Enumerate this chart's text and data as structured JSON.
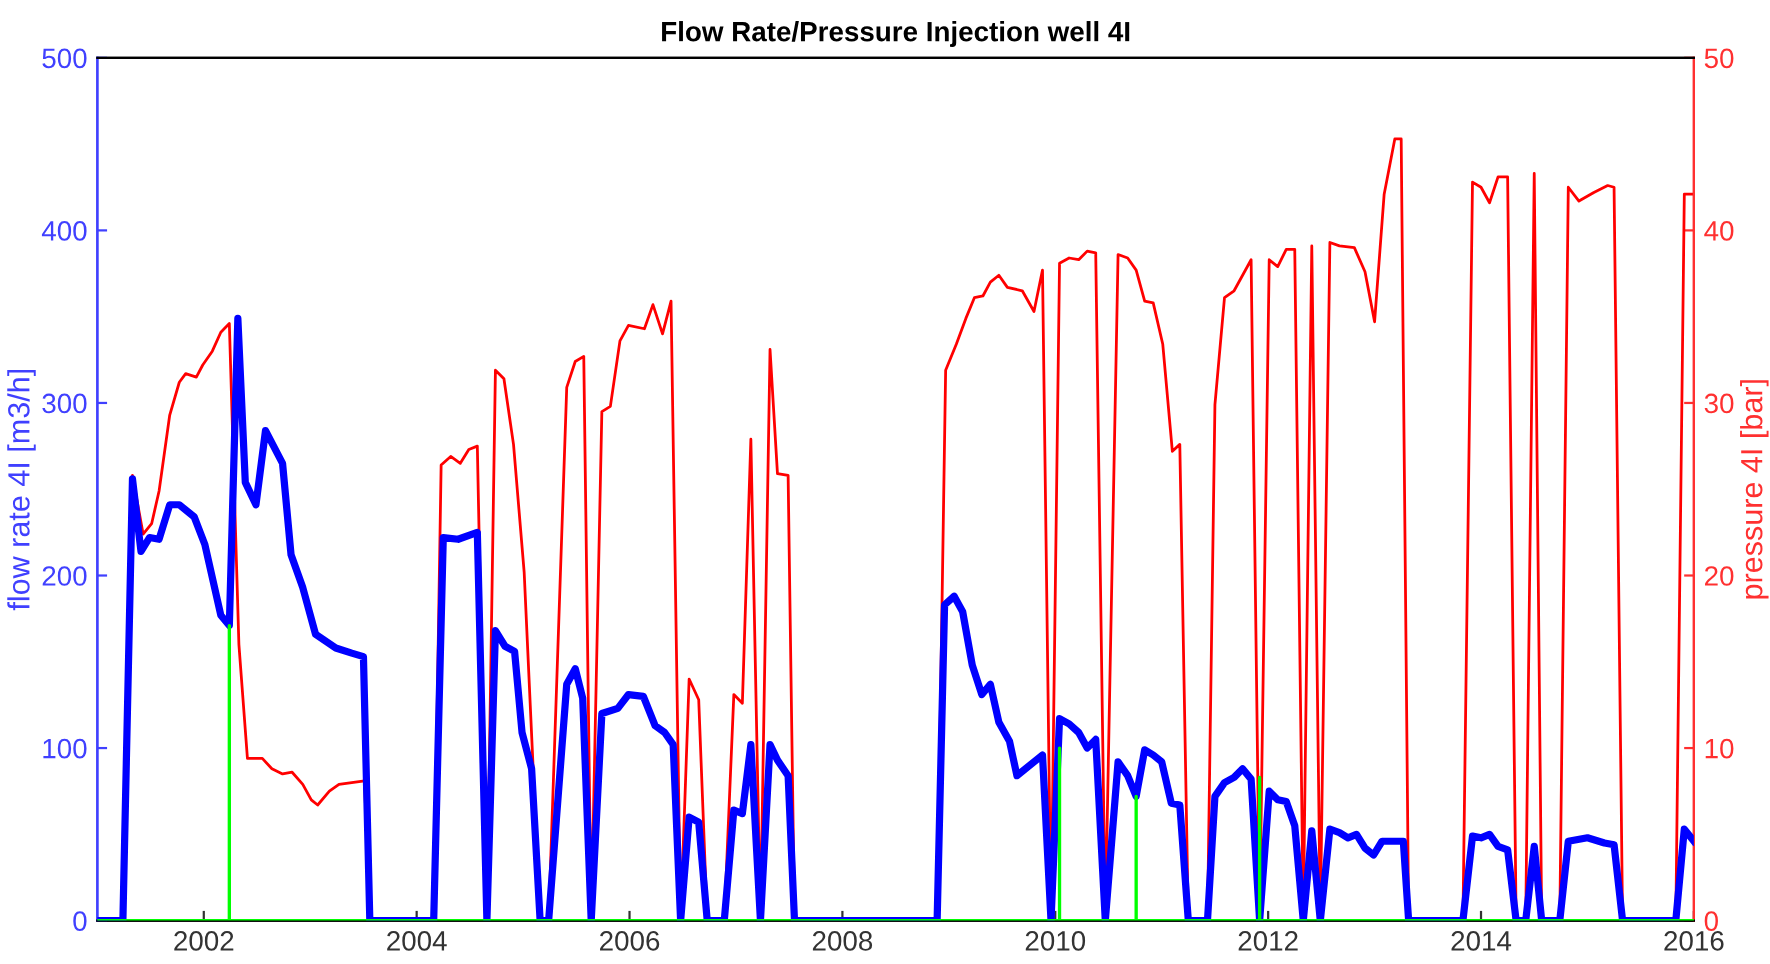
{
  "chart_data": {
    "type": "line",
    "title": "Flow Rate/Pressure Injection well 4I",
    "ylabel": "flow rate 4I [m3/h]",
    "y2label": "pressure 4I [bar]",
    "xlim": [
      2001,
      2016
    ],
    "xticks": [
      2002,
      2004,
      2006,
      2008,
      2010,
      2012,
      2014,
      2016
    ],
    "ylim": [
      0,
      500
    ],
    "yticks": [
      0,
      100,
      200,
      300,
      400,
      500
    ],
    "y2lim": [
      0,
      50
    ],
    "y2ticks": [
      0,
      10,
      20,
      30,
      40,
      50
    ],
    "grid": false,
    "legend": false,
    "series": [
      {
        "color": "#ff0000",
        "axis": "y2",
        "x": [
          2001.0,
          2001.24,
          2001.33,
          2001.43,
          2001.51,
          2001.58,
          2001.68,
          2001.77,
          2001.83,
          2001.93,
          2001.99,
          2002.08,
          2002.16,
          2002.24,
          2002.33,
          2002.41,
          2002.55,
          2002.64,
          2002.74,
          2002.83,
          2002.93,
          2003.01,
          2003.07,
          2003.18,
          2003.27,
          2003.39,
          2003.51,
          2003.56,
          2004.16,
          2004.23,
          2004.32,
          2004.41,
          2004.49,
          2004.57,
          2004.66,
          2004.74,
          2004.82,
          2004.91,
          2005.01,
          2005.16,
          2005.24,
          2005.41,
          2005.49,
          2005.57,
          2005.64,
          2005.74,
          2005.82,
          2005.91,
          2005.99,
          2006.14,
          2006.22,
          2006.31,
          2006.39,
          2006.48,
          2006.56,
          2006.65,
          2006.73,
          2006.89,
          2006.98,
          2007.06,
          2007.14,
          2007.23,
          2007.32,
          2007.39,
          2007.49,
          2007.55,
          2008.89,
          2008.97,
          2009.07,
          2009.16,
          2009.24,
          2009.32,
          2009.39,
          2009.47,
          2009.55,
          2009.69,
          2009.8,
          2009.88,
          2009.96,
          2010.04,
          2010.13,
          2010.22,
          2010.3,
          2010.38,
          2010.47,
          2010.59,
          2010.68,
          2010.76,
          2010.84,
          2010.92,
          2011.01,
          2011.1,
          2011.17,
          2011.25,
          2011.43,
          2011.5,
          2011.59,
          2011.68,
          2011.76,
          2011.84,
          2011.92,
          2012.01,
          2012.09,
          2012.17,
          2012.25,
          2012.33,
          2012.41,
          2012.49,
          2012.58,
          2012.67,
          2012.81,
          2012.91,
          2013.0,
          2013.09,
          2013.19,
          2013.25,
          2013.32,
          2013.83,
          2013.92,
          2014.0,
          2014.08,
          2014.16,
          2014.25,
          2014.33,
          2014.42,
          2014.5,
          2014.57,
          2014.74,
          2014.82,
          2014.92,
          2015.06,
          2015.19,
          2015.25,
          2015.33,
          2015.83,
          2015.91,
          2016.0
        ],
        "values": [
          0,
          0,
          25.8,
          22.4,
          23.0,
          24.9,
          29.3,
          31.2,
          31.7,
          31.5,
          32.2,
          33.0,
          34.1,
          34.6,
          16.0,
          9.4,
          9.4,
          8.8,
          8.5,
          8.6,
          7.9,
          7.0,
          6.7,
          7.5,
          7.9,
          8.0,
          8.1,
          0,
          0,
          26.4,
          26.9,
          26.5,
          27.3,
          27.5,
          0,
          31.9,
          31.4,
          27.6,
          20.2,
          0,
          0,
          30.9,
          32.4,
          32.7,
          0,
          29.5,
          29.8,
          33.6,
          34.5,
          34.3,
          35.7,
          34.0,
          35.9,
          0,
          14.0,
          12.8,
          0,
          0,
          13.1,
          12.6,
          27.9,
          0,
          33.1,
          25.9,
          25.8,
          0,
          0,
          31.9,
          33.4,
          34.9,
          36.1,
          36.2,
          37.0,
          37.4,
          36.7,
          36.5,
          35.3,
          37.7,
          0,
          38.1,
          38.4,
          38.3,
          38.8,
          38.7,
          0,
          38.6,
          38.4,
          37.7,
          35.9,
          35.8,
          33.4,
          27.2,
          27.6,
          0,
          0,
          29.9,
          36.1,
          36.5,
          37.4,
          38.3,
          0,
          38.3,
          37.9,
          38.9,
          38.9,
          0,
          39.1,
          0,
          39.3,
          39.1,
          39.0,
          37.6,
          34.7,
          42.1,
          45.3,
          45.3,
          0,
          0,
          42.8,
          42.5,
          41.6,
          43.1,
          43.1,
          0,
          0,
          43.3,
          0,
          0,
          42.5,
          41.7,
          42.2,
          42.6,
          42.5,
          0,
          0,
          42.1,
          42.1
        ]
      },
      {
        "color": "#00ff00",
        "x": [
          2001.0,
          2002.24,
          2002.24,
          2002.24,
          2010.04,
          2010.04,
          2010.04,
          2010.76,
          2010.76,
          2010.76,
          2011.92,
          2011.92,
          2011.92,
          2016.0
        ],
        "values": [
          0,
          0,
          171,
          0,
          0,
          100,
          0,
          0,
          72,
          0,
          0,
          83,
          0,
          0
        ]
      },
      {
        "color": "#0000ff",
        "x": [
          2001.0,
          2001.24,
          2001.33,
          2001.41,
          2001.49,
          2001.58,
          2001.68,
          2001.77,
          2001.91,
          2002.01,
          2002.16,
          2002.24,
          2002.32,
          2002.39,
          2002.49,
          2002.58,
          2002.74,
          2002.82,
          2002.93,
          2003.05,
          2003.24,
          2003.39,
          2003.5,
          2003.56,
          2004.16,
          2004.25,
          2004.39,
          2004.57,
          2004.66,
          2004.74,
          2004.83,
          2004.92,
          2004.99,
          2005.08,
          2005.16,
          2005.24,
          2005.41,
          2005.49,
          2005.56,
          2005.64,
          2005.74,
          2005.89,
          2005.99,
          2006.13,
          2006.24,
          2006.33,
          2006.41,
          2006.48,
          2006.56,
          2006.65,
          2006.73,
          2006.89,
          2006.98,
          2007.06,
          2007.14,
          2007.23,
          2007.32,
          2007.39,
          2007.49,
          2007.55,
          2008.89,
          2008.96,
          2009.05,
          2009.13,
          2009.22,
          2009.31,
          2009.39,
          2009.47,
          2009.57,
          2009.64,
          2009.88,
          2009.96,
          2010.04,
          2010.13,
          2010.22,
          2010.3,
          2010.38,
          2010.47,
          2010.59,
          2010.68,
          2010.76,
          2010.84,
          2010.92,
          2011.0,
          2011.09,
          2011.17,
          2011.25,
          2011.43,
          2011.5,
          2011.59,
          2011.68,
          2011.76,
          2011.84,
          2011.92,
          2012.01,
          2012.09,
          2012.17,
          2012.25,
          2012.33,
          2012.41,
          2012.49,
          2012.58,
          2012.67,
          2012.75,
          2012.83,
          2012.91,
          2012.99,
          2013.07,
          2013.27,
          2013.32,
          2013.83,
          2013.92,
          2014.0,
          2014.08,
          2014.16,
          2014.25,
          2014.33,
          2014.42,
          2014.5,
          2014.57,
          2014.74,
          2014.82,
          2015.0,
          2015.16,
          2015.25,
          2015.33,
          2015.83,
          2015.91,
          2016.0
        ],
        "values": [
          0,
          0,
          256,
          214,
          222,
          221,
          241,
          241,
          234,
          218,
          177,
          171,
          349,
          254,
          241,
          284,
          265,
          212,
          193,
          166,
          158,
          155,
          153,
          0,
          0,
          222,
          221,
          225,
          0,
          168,
          159,
          156,
          109,
          88,
          0,
          0,
          137,
          146,
          129,
          0,
          120,
          123,
          131,
          130,
          113,
          109,
          102,
          0,
          60,
          57,
          0,
          0,
          64,
          62,
          102,
          0,
          102,
          93,
          84,
          0,
          0,
          183,
          188,
          179,
          148,
          131,
          137,
          115,
          104,
          84,
          96,
          0,
          117,
          114,
          109,
          100,
          105,
          0,
          92,
          84,
          72,
          99,
          96,
          92,
          68,
          67,
          0,
          0,
          72,
          80,
          83,
          88,
          82,
          0,
          75,
          70,
          69,
          55,
          0,
          52,
          0,
          53,
          51,
          48,
          50,
          42,
          38,
          46,
          46,
          0,
          0,
          49,
          48,
          50,
          43,
          41,
          0,
          0,
          43,
          0,
          0,
          46,
          48,
          45,
          44,
          0,
          0,
          53,
          46
        ]
      }
    ]
  }
}
